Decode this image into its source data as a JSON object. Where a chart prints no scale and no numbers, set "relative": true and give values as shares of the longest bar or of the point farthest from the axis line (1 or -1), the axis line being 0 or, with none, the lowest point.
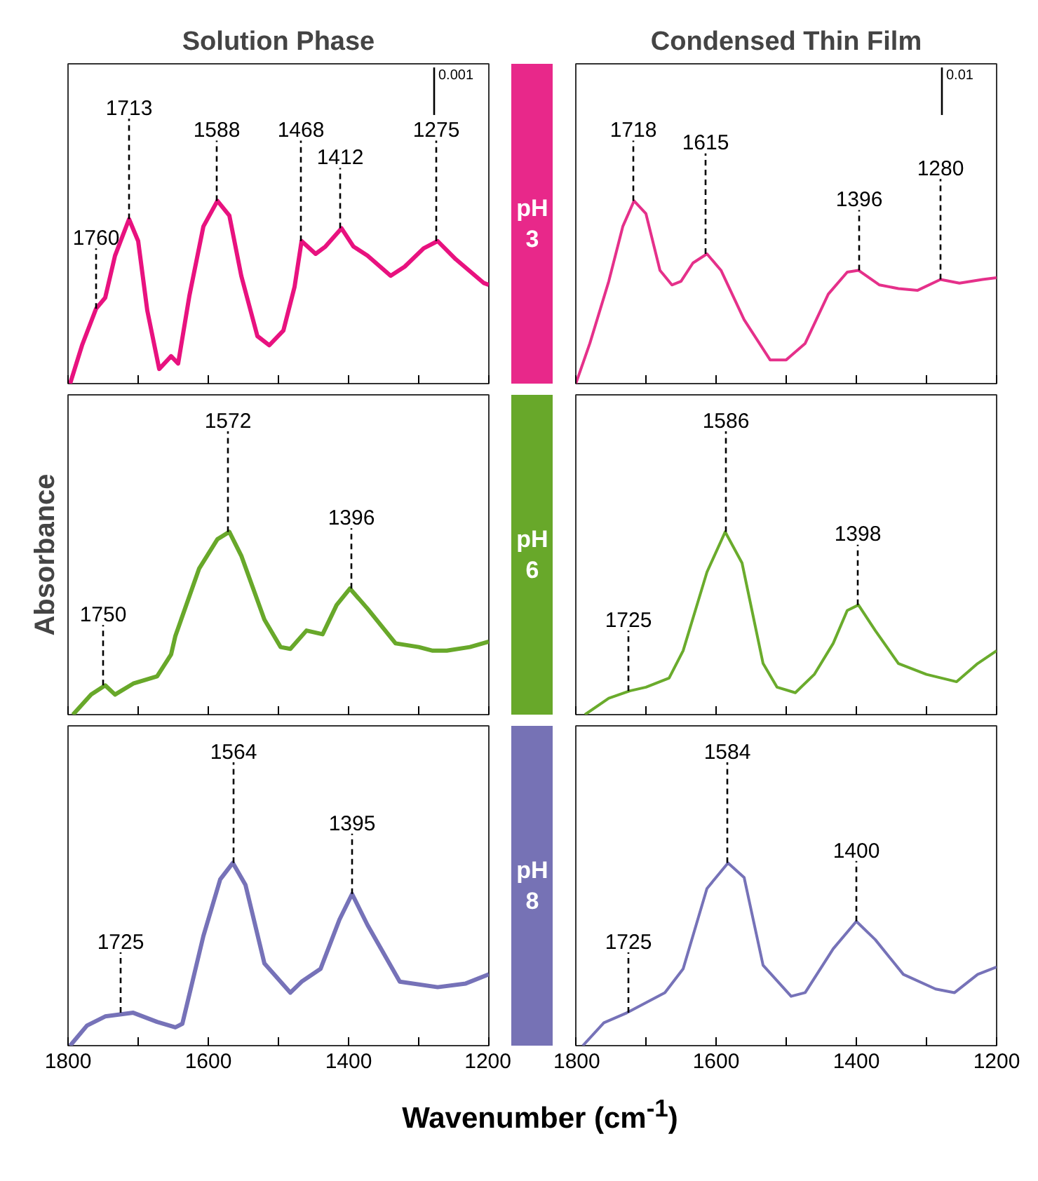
{
  "chart_data": [
    {
      "type": "line",
      "title": "Solution Phase",
      "relative": true,
      "xlim": [
        1800,
        1200
      ],
      "xticks": [
        1800,
        {
          "value": 1700,
          "label": null
        },
        1600,
        {
          "value": 1500,
          "label": null
        },
        1400,
        {
          "value": 1300,
          "label": null
        },
        1200
      ],
      "tick_labels": false,
      "x": [
        1797,
        1780,
        1760,
        1747,
        1733,
        1713,
        1700,
        1687,
        1670,
        1653,
        1643,
        1627,
        1607,
        1587,
        1570,
        1553,
        1530,
        1513,
        1493,
        1477,
        1467,
        1447,
        1433,
        1410,
        1393,
        1373,
        1340,
        1320,
        1293,
        1273,
        1247,
        1207,
        1200
      ],
      "series": [
        {
          "color": "#e8127f",
          "values": [
            0,
            0.21,
            0.41,
            0.47,
            0.7,
            0.9,
            0.78,
            0.4,
            0.08,
            0.15,
            0.11,
            0.48,
            0.86,
            1.0,
            0.92,
            0.59,
            0.26,
            0.21,
            0.29,
            0.53,
            0.78,
            0.71,
            0.75,
            0.85,
            0.75,
            0.7,
            0.59,
            0.64,
            0.74,
            0.78,
            0.68,
            0.55,
            0.54
          ]
        }
      ],
      "annotations": [
        {
          "text": "1760",
          "x": 1760,
          "y": 0.41
        },
        {
          "text": "1713",
          "x": 1713,
          "y": 0.9
        },
        {
          "text": "1588",
          "x": 1588,
          "y": 1.0
        },
        {
          "text": "1468",
          "x": 1468,
          "y": 0.78
        },
        {
          "text": "1412",
          "x": 1412,
          "y": 0.85
        },
        {
          "text": "1275",
          "x": 1275,
          "y": 0.78
        },
        "0.001"
      ]
    },
    {
      "type": "line",
      "title": "Condensed Thin Film",
      "relative": true,
      "xlim": [
        1800,
        1200
      ],
      "xticks": [
        1800,
        {
          "value": 1700,
          "label": null
        },
        1600,
        {
          "value": 1500,
          "label": null
        },
        1400,
        {
          "value": 1300,
          "label": null
        },
        1200
      ],
      "tick_labels": false,
      "x": [
        1800,
        1780,
        1753,
        1733,
        1717,
        1700,
        1680,
        1663,
        1650,
        1633,
        1613,
        1593,
        1560,
        1523,
        1500,
        1473,
        1440,
        1413,
        1397,
        1367,
        1340,
        1313,
        1280,
        1253,
        1220,
        1200
      ],
      "series": [
        {
          "color": "#e5308a",
          "values": [
            0,
            0.22,
            0.56,
            0.86,
            1.0,
            0.93,
            0.62,
            0.54,
            0.56,
            0.66,
            0.71,
            0.62,
            0.35,
            0.13,
            0.13,
            0.22,
            0.49,
            0.61,
            0.62,
            0.54,
            0.52,
            0.51,
            0.57,
            0.55,
            0.57,
            0.58
          ]
        }
      ],
      "annotations": [
        {
          "text": "1718",
          "x": 1718,
          "y": 1.0
        },
        {
          "text": "1615",
          "x": 1615,
          "y": 0.71
        },
        {
          "text": "1396",
          "x": 1396,
          "y": 0.62
        },
        {
          "text": "1280",
          "x": 1280,
          "y": 0.57
        },
        "0.01"
      ]
    },
    {
      "type": "line",
      "ylabel": "Absorbance",
      "relative": true,
      "xlim": [
        1800,
        1200
      ],
      "xticks": [
        1800,
        {
          "value": 1700,
          "label": null
        },
        1600,
        {
          "value": 1500,
          "label": null
        },
        1400,
        {
          "value": 1300,
          "label": null
        },
        1200
      ],
      "tick_labels": false,
      "x": [
        1793,
        1767,
        1747,
        1733,
        1707,
        1673,
        1653,
        1647,
        1613,
        1587,
        1570,
        1553,
        1520,
        1497,
        1483,
        1460,
        1437,
        1417,
        1398,
        1373,
        1333,
        1300,
        1280,
        1260,
        1227,
        1200
      ],
      "series": [
        {
          "color": "#68a82a",
          "values": [
            0,
            0.11,
            0.16,
            0.11,
            0.17,
            0.21,
            0.33,
            0.43,
            0.8,
            0.96,
            1.0,
            0.87,
            0.52,
            0.37,
            0.36,
            0.46,
            0.44,
            0.6,
            0.69,
            0.58,
            0.39,
            0.37,
            0.35,
            0.35,
            0.37,
            0.4
          ]
        }
      ],
      "annotations": [
        {
          "text": "1750",
          "x": 1750,
          "y": 0.16
        },
        {
          "text": "1572",
          "x": 1572,
          "y": 1.0
        },
        {
          "text": "1396",
          "x": 1396,
          "y": 0.69
        }
      ]
    },
    {
      "type": "line",
      "relative": true,
      "xlim": [
        1800,
        1200
      ],
      "xticks": [
        1800,
        {
          "value": 1700,
          "label": null
        },
        1600,
        {
          "value": 1500,
          "label": null
        },
        1400,
        {
          "value": 1300,
          "label": null
        },
        1200
      ],
      "tick_labels": false,
      "x": [
        1787,
        1753,
        1723,
        1700,
        1667,
        1647,
        1613,
        1587,
        1563,
        1533,
        1513,
        1487,
        1460,
        1433,
        1413,
        1397,
        1373,
        1340,
        1300,
        1257,
        1227,
        1200
      ],
      "series": [
        {
          "color": "#6aab2c",
          "values": [
            0,
            0.09,
            0.13,
            0.15,
            0.2,
            0.35,
            0.78,
            1.0,
            0.83,
            0.28,
            0.15,
            0.12,
            0.22,
            0.39,
            0.57,
            0.6,
            0.46,
            0.28,
            0.22,
            0.18,
            0.28,
            0.35
          ]
        }
      ],
      "annotations": [
        {
          "text": "1725",
          "x": 1725,
          "y": 0.13
        },
        {
          "text": "1586",
          "x": 1586,
          "y": 1.0
        },
        {
          "text": "1398",
          "x": 1398,
          "y": 0.6
        }
      ]
    },
    {
      "type": "line",
      "xlabel": "Wavenumber (cm$^{-1}$)",
      "relative": true,
      "xlim": [
        1800,
        1200
      ],
      "xticks": [
        1800,
        {
          "value": 1700,
          "label": null
        },
        1600,
        {
          "value": 1500,
          "label": null
        },
        1400,
        {
          "value": 1300,
          "label": null
        },
        1200
      ],
      "x": [
        1797,
        1773,
        1747,
        1707,
        1673,
        1647,
        1637,
        1607,
        1583,
        1565,
        1547,
        1520,
        1483,
        1467,
        1440,
        1413,
        1395,
        1373,
        1327,
        1273,
        1233,
        1200
      ],
      "series": [
        {
          "color": "#7672b8",
          "values": [
            0,
            0.11,
            0.16,
            0.18,
            0.13,
            0.1,
            0.12,
            0.6,
            0.91,
            1.0,
            0.88,
            0.45,
            0.29,
            0.35,
            0.42,
            0.69,
            0.83,
            0.66,
            0.35,
            0.32,
            0.34,
            0.39
          ]
        }
      ],
      "annotations": [
        {
          "text": "1725",
          "x": 1725,
          "y": 0.18
        },
        {
          "text": "1564",
          "x": 1564,
          "y": 1.0
        },
        {
          "text": "1395",
          "x": 1395,
          "y": 0.83
        }
      ]
    },
    {
      "type": "line",
      "relative": true,
      "xlim": [
        1800,
        1200
      ],
      "xticks": [
        1800,
        {
          "value": 1700,
          "label": null
        },
        1600,
        {
          "value": 1500,
          "label": null
        },
        1400,
        {
          "value": 1300,
          "label": null
        },
        1200
      ],
      "x": [
        1790,
        1760,
        1727,
        1673,
        1647,
        1613,
        1583,
        1560,
        1533,
        1493,
        1473,
        1433,
        1400,
        1373,
        1333,
        1287,
        1260,
        1227,
        1200
      ],
      "series": [
        {
          "color": "#7672b8",
          "values": [
            0,
            0.125,
            0.18,
            0.29,
            0.42,
            0.86,
            1.0,
            0.92,
            0.44,
            0.27,
            0.29,
            0.53,
            0.68,
            0.58,
            0.39,
            0.31,
            0.29,
            0.39,
            0.43
          ]
        }
      ],
      "annotations": [
        {
          "text": "1725",
          "x": 1725,
          "y": 0.18
        },
        {
          "text": "1584",
          "x": 1584,
          "y": 1.0
        },
        {
          "text": "1400",
          "x": 1400,
          "y": 0.68
        }
      ]
    },
    {
      "type": "other",
      "annotations": [
        "pH 3",
        "pH 6",
        "pH 8"
      ],
      "colors": [
        "#e8288a",
        "#68a82a",
        "#7672b5"
      ]
    }
  ]
}
